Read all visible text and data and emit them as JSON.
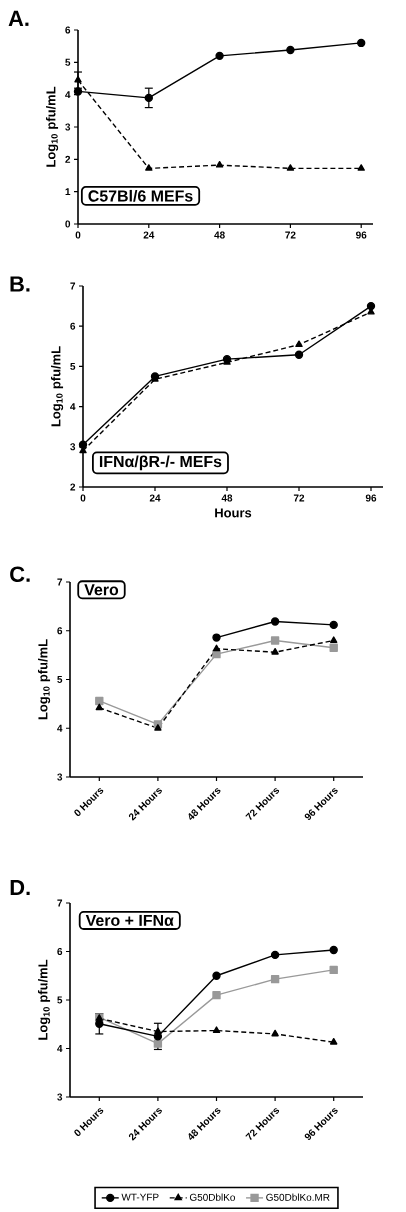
{
  "chart_data": [
    {
      "type": "line",
      "title": "A.",
      "ylabel": "Log$_{10}$ pfu/mL",
      "annotations": [
        "C57Bl/6 MEFs"
      ],
      "x": [
        0,
        24,
        48,
        72,
        96
      ],
      "xlim": [
        0,
        100
      ],
      "xticks": [
        0,
        24,
        48,
        72,
        96
      ],
      "ylim": [
        0,
        6
      ],
      "yticks": [
        0,
        1,
        2,
        3,
        4,
        5,
        6
      ],
      "series": [
        {
          "color": "#000000",
          "marker": "circle",
          "line_style": "solid",
          "values": [
            4.1,
            3.9,
            5.2,
            5.38,
            5.6
          ],
          "errors": [
            null,
            0.3,
            null,
            null,
            null
          ]
        },
        {
          "color": "#000000",
          "marker": "triangle",
          "line_style": "dashed",
          "values": [
            4.45,
            1.72,
            1.82,
            1.72,
            1.72
          ],
          "errors": [
            0.25,
            null,
            null,
            null,
            null
          ]
        }
      ]
    },
    {
      "type": "line",
      "title": "B.",
      "xlabel": "Hours",
      "ylabel": "Log$_{10}$ pfu/mL",
      "annotations": [
        "IFNα/βR-/- MEFs"
      ],
      "x": [
        0,
        24,
        48,
        72,
        96
      ],
      "xlim": [
        0,
        100
      ],
      "xticks": [
        0,
        24,
        48,
        72,
        96
      ],
      "ylim": [
        2,
        7
      ],
      "yticks": [
        2,
        3,
        4,
        5,
        6,
        7
      ],
      "series": [
        {
          "color": "#000000",
          "marker": "circle",
          "line_style": "solid",
          "values": [
            3.05,
            4.75,
            5.18,
            5.29,
            6.5
          ]
        },
        {
          "color": "#000000",
          "marker": "triangle",
          "line_style": "dashed",
          "values": [
            2.9,
            4.68,
            5.1,
            5.54,
            6.35
          ]
        }
      ]
    },
    {
      "type": "line",
      "title": "C.",
      "ylabel": "Log$_{10}$ pfu/mL",
      "annotations": [
        "Vero"
      ],
      "categories": [
        "0 Hours",
        "24 Hours",
        "48 Hours",
        "72 Hours",
        "96 Hours"
      ],
      "ylim": [
        3,
        7
      ],
      "yticks": [
        3,
        4,
        5,
        6,
        7
      ],
      "series": [
        {
          "color": "#000000",
          "marker": "circle",
          "line_style": "solid",
          "values": [
            null,
            null,
            5.86,
            6.19,
            6.12
          ]
        },
        {
          "color": "#000000",
          "marker": "triangle",
          "line_style": "dashed",
          "values": [
            4.42,
            4.0,
            5.63,
            5.56,
            5.8
          ]
        },
        {
          "color": "#999999",
          "marker": "square",
          "line_style": "solid",
          "values": [
            4.56,
            4.08,
            5.52,
            5.8,
            5.65
          ]
        }
      ]
    },
    {
      "type": "line",
      "title": "D.",
      "ylabel": "Log$_{10}$ pfu/mL",
      "annotations": [
        "Vero + IFNα"
      ],
      "categories": [
        "0 Hours",
        "24 Hours",
        "48 Hours",
        "72 Hours",
        "96 Hours"
      ],
      "ylim": [
        3,
        7
      ],
      "yticks": [
        3,
        4,
        5,
        6,
        7
      ],
      "legend": "bottom",
      "series": [
        {
          "name": "WT-YFP",
          "color": "#000000",
          "marker": "circle",
          "line_style": "solid",
          "values": [
            4.51,
            4.25,
            5.5,
            5.93,
            6.03
          ],
          "errors": [
            0.21,
            0.27,
            null,
            null,
            null
          ]
        },
        {
          "name": "G50DblKo",
          "color": "#000000",
          "marker": "triangle",
          "line_style": "dashed",
          "values": [
            4.62,
            4.35,
            4.37,
            4.3,
            4.13
          ]
        },
        {
          "name": "G50DblKo.MR",
          "color": "#999999",
          "marker": "square",
          "line_style": "solid",
          "values": [
            4.64,
            4.1,
            5.1,
            5.43,
            5.62
          ]
        }
      ]
    }
  ]
}
